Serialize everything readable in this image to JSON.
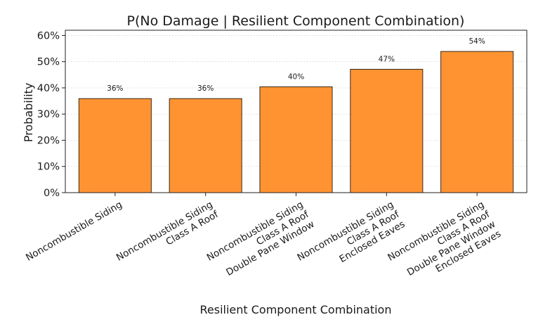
{
  "chart_data": {
    "type": "bar",
    "title": "P(No Damage | Resilient Component Combination)",
    "xlabel": "Resilient Component Combination",
    "ylabel": "Probability",
    "ylim": [
      0,
      0.62
    ],
    "yticks": [
      0,
      0.1,
      0.2,
      0.3,
      0.4,
      0.5,
      0.6
    ],
    "ytick_labels": [
      "0%",
      "10%",
      "20%",
      "30%",
      "40%",
      "50%",
      "60%"
    ],
    "grid": "y-dotted",
    "bar_color": "#ff9332",
    "bar_edge_color": "#3a2a1a",
    "categories": [
      [
        "Noncombustible Siding"
      ],
      [
        "Noncombustible Siding",
        "Class A Roof"
      ],
      [
        "Noncombustible Siding",
        "Class A Roof",
        "Double Pane Window"
      ],
      [
        "Noncombustible Siding",
        "Class A Roof",
        "Enclosed Eaves"
      ],
      [
        "Noncombustible Siding",
        "Class A Roof",
        "Double Pane Window",
        "Enclosed Eaves"
      ]
    ],
    "values": [
      0.359,
      0.359,
      0.404,
      0.471,
      0.539
    ],
    "data_labels": [
      "36%",
      "36%",
      "40%",
      "47%",
      "54%"
    ]
  }
}
